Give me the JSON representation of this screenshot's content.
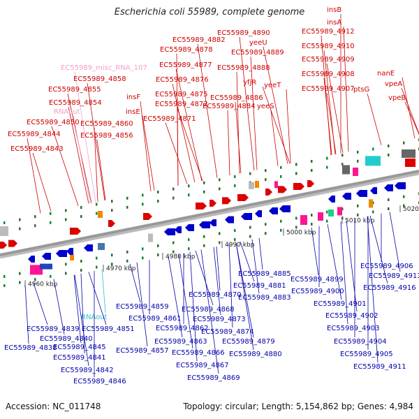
{
  "title": "Escherichia coli 55989, complete genome",
  "footer": {
    "accession": "Accession: NC_011748",
    "topology": "Topology: circular; Length: 5,154,862 bp; Genes: 4,984"
  },
  "colors": {
    "top_gene": "#dd0000",
    "top_label": "#cc0000",
    "bottom_gene": "#0000cc",
    "bottom_label": "#0000aa",
    "misc_rna": "#f0a0c8",
    "rnaout_bottom": "#33bbcc",
    "backbone": "#999999"
  },
  "scale": [
    {
      "label": "4960 kbp"
    },
    {
      "label": "4970 kbp"
    },
    {
      "label": "4980 kbp"
    },
    {
      "label": "4990 kbp"
    },
    {
      "label": "5000 kbp"
    },
    {
      "label": "5010 kbp"
    },
    {
      "label": "5020 kbp"
    }
  ],
  "top_labels": [
    {
      "text": "insB",
      "kind": "gene"
    },
    {
      "text": "insA",
      "kind": "gene"
    },
    {
      "text": "EC55989_4912",
      "kind": "gene"
    },
    {
      "text": "EC55989_4890",
      "kind": "gene"
    },
    {
      "text": "EC55989_4882",
      "kind": "gene"
    },
    {
      "text": "yeeU",
      "kind": "gene"
    },
    {
      "text": "EC55989_4878",
      "kind": "gene"
    },
    {
      "text": "EC55989_4889",
      "kind": "gene"
    },
    {
      "text": "EC55989_4910",
      "kind": "gene"
    },
    {
      "text": "EC55989_4909",
      "kind": "gene"
    },
    {
      "text": "EC55989_misc_RNA_107",
      "kind": "misc"
    },
    {
      "text": "EC55989_4877",
      "kind": "gene"
    },
    {
      "text": "EC55989_4888",
      "kind": "gene"
    },
    {
      "text": "EC55989_4908",
      "kind": "gene"
    },
    {
      "text": "nanE",
      "kind": "gene"
    },
    {
      "text": "EC55989_4858",
      "kind": "gene"
    },
    {
      "text": "EC55989_4876",
      "kind": "gene"
    },
    {
      "text": "yfjR",
      "kind": "gene"
    },
    {
      "text": "yeeT",
      "kind": "gene"
    },
    {
      "text": "EC55989_4907",
      "kind": "gene"
    },
    {
      "text": "ptsG",
      "kind": "gene"
    },
    {
      "text": "vpeA",
      "kind": "gene"
    },
    {
      "text": "EC55989_4855",
      "kind": "gene"
    },
    {
      "text": "EC55989_4875",
      "kind": "gene"
    },
    {
      "text": "EC55989_4886",
      "kind": "gene"
    },
    {
      "text": "insF",
      "kind": "gene"
    },
    {
      "text": "vpeB",
      "kind": "gene"
    },
    {
      "text": "EC55989_4854",
      "kind": "gene"
    },
    {
      "text": "EC55989_4872",
      "kind": "gene"
    },
    {
      "text": "EC55989_4884",
      "kind": "gene"
    },
    {
      "text": "yeeS",
      "kind": "gene"
    },
    {
      "text": "insE",
      "kind": "gene"
    },
    {
      "text": "RNAout",
      "kind": "misc"
    },
    {
      "text": "EC55989_4871",
      "kind": "gene"
    },
    {
      "text": "EC55989_4850",
      "kind": "gene"
    },
    {
      "text": "EC55989_4860",
      "kind": "gene"
    },
    {
      "text": "EC55989_4856",
      "kind": "gene"
    },
    {
      "text": "EC55989_4844",
      "kind": "gene"
    },
    {
      "text": "EC55989_4843",
      "kind": "gene"
    }
  ],
  "bottom_labels": [
    {
      "text": "EC55989_4906",
      "kind": "gene"
    },
    {
      "text": "EC55989_4885",
      "kind": "gene"
    },
    {
      "text": "EC55989_4899",
      "kind": "gene"
    },
    {
      "text": "EC55989_4913",
      "kind": "gene"
    },
    {
      "text": "EC55989_4881",
      "kind": "gene"
    },
    {
      "text": "EC55989_4916",
      "kind": "gene"
    },
    {
      "text": "EC55989_4900",
      "kind": "gene"
    },
    {
      "text": "EC55989_4870",
      "kind": "gene"
    },
    {
      "text": "EC55989_4883",
      "kind": "gene"
    },
    {
      "text": "EC55989_4859",
      "kind": "gene"
    },
    {
      "text": "EC55989_4901",
      "kind": "gene"
    },
    {
      "text": "EC55989_4868",
      "kind": "gene"
    },
    {
      "text": "EC55989_4861",
      "kind": "gene"
    },
    {
      "text": "RNAout",
      "kind": "rna"
    },
    {
      "text": "EC55989_4873",
      "kind": "gene"
    },
    {
      "text": "EC55989_4902",
      "kind": "gene"
    },
    {
      "text": "EC55989_4839",
      "kind": "gene"
    },
    {
      "text": "EC55989_4851",
      "kind": "gene"
    },
    {
      "text": "EC55989_4862",
      "kind": "gene"
    },
    {
      "text": "EC55989_4874",
      "kind": "gene"
    },
    {
      "text": "EC55989_4903",
      "kind": "gene"
    },
    {
      "text": "EC55989_4840",
      "kind": "gene"
    },
    {
      "text": "EC55989_4863",
      "kind": "gene"
    },
    {
      "text": "EC55989_4879",
      "kind": "gene"
    },
    {
      "text": "EC55989_4904",
      "kind": "gene"
    },
    {
      "text": "EC55989_4838",
      "kind": "gene"
    },
    {
      "text": "EC55989_4845",
      "kind": "gene"
    },
    {
      "text": "EC55989_4857",
      "kind": "gene"
    },
    {
      "text": "EC55989_4866",
      "kind": "gene"
    },
    {
      "text": "EC55989_4880",
      "kind": "gene"
    },
    {
      "text": "EC55989_4905",
      "kind": "gene"
    },
    {
      "text": "EC55989_4841",
      "kind": "gene"
    },
    {
      "text": "EC55989_4867",
      "kind": "gene"
    },
    {
      "text": "EC55989_4911",
      "kind": "gene"
    },
    {
      "text": "EC55989_4842",
      "kind": "gene"
    },
    {
      "text": "EC55989_4869",
      "kind": "gene"
    },
    {
      "text": "EC55989_4846",
      "kind": "gene"
    }
  ]
}
